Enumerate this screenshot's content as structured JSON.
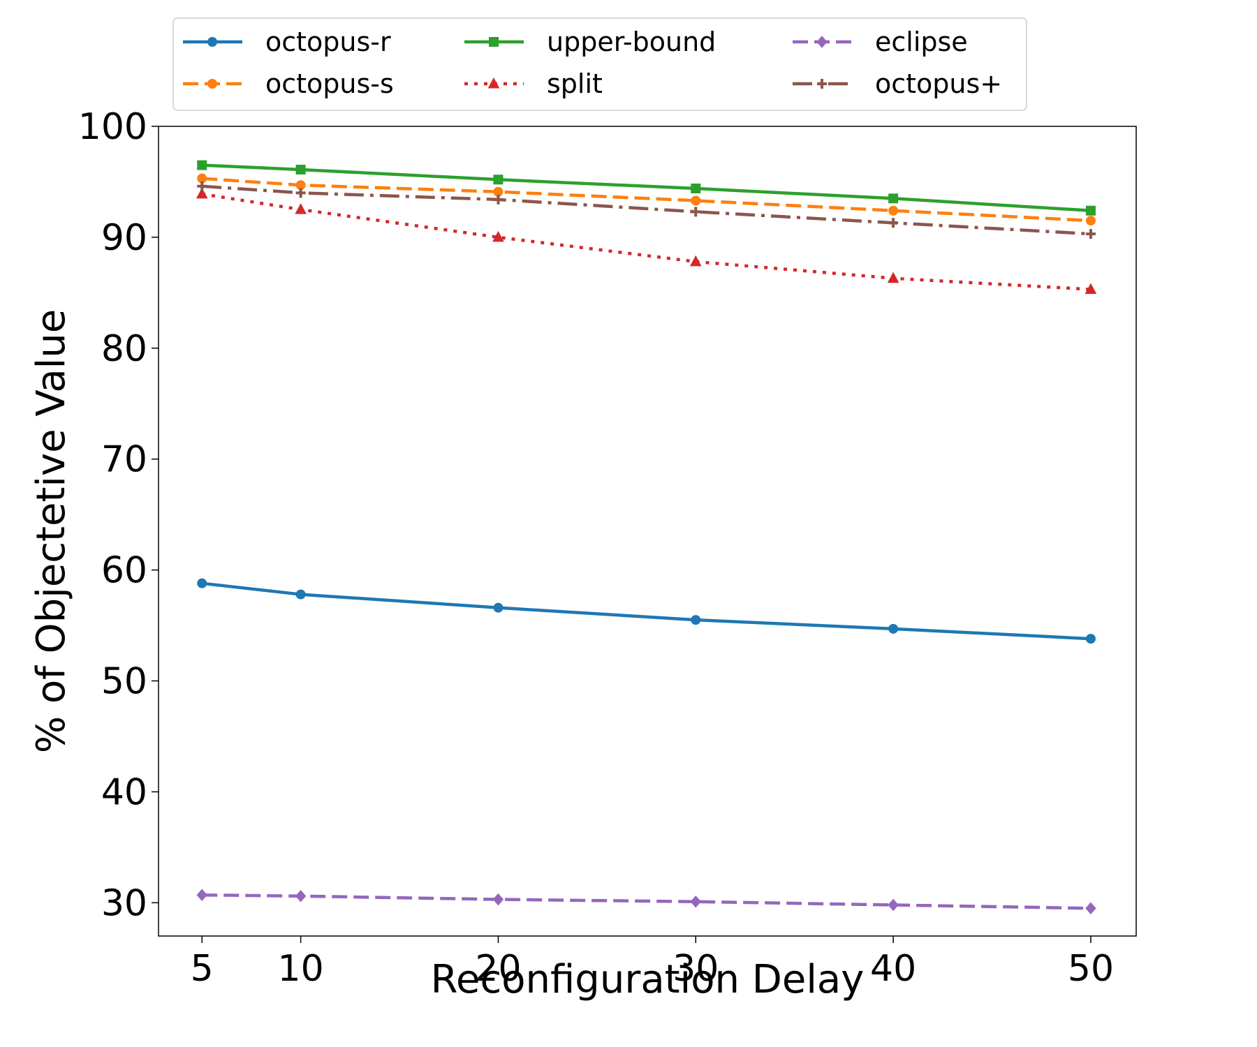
{
  "chart_data": {
    "type": "line",
    "title": "",
    "xlabel": "Reconfiguration Delay",
    "ylabel": "% of Objectetive Value",
    "x": [
      5,
      10,
      20,
      30,
      40,
      50
    ],
    "xlim": [
      2.8,
      52.3
    ],
    "ylim": [
      27,
      100
    ],
    "xticks": [
      5,
      10,
      20,
      30,
      40,
      50
    ],
    "yticks": [
      30,
      40,
      50,
      60,
      70,
      80,
      90,
      100
    ],
    "grid": false,
    "legend_position": "top, above plot, 3 columns",
    "series": [
      {
        "name": "octopus-r",
        "color": "#1f77b4",
        "dash": "solid",
        "marker": "circle",
        "values": [
          58.8,
          57.8,
          56.6,
          55.5,
          54.7,
          53.8
        ]
      },
      {
        "name": "octopus-s",
        "color": "#ff7f0e",
        "dash": "dashed",
        "marker": "circle",
        "values": [
          95.3,
          94.7,
          94.1,
          93.3,
          92.4,
          91.5
        ]
      },
      {
        "name": "upper-bound",
        "color": "#2ca02c",
        "dash": "solid",
        "marker": "square",
        "values": [
          96.5,
          96.1,
          95.2,
          94.4,
          93.5,
          92.4
        ]
      },
      {
        "name": "split",
        "color": "#d62728",
        "dash": "dotted",
        "marker": "triangle",
        "values": [
          93.9,
          92.5,
          90.0,
          87.8,
          86.3,
          85.3
        ]
      },
      {
        "name": "eclipse",
        "color": "#9467bd",
        "dash": "dashed",
        "marker": "diamond",
        "values": [
          30.7,
          30.6,
          30.3,
          30.1,
          29.8,
          29.5
        ]
      },
      {
        "name": "octopus+",
        "color": "#8c564b",
        "dash": "dashdot",
        "marker": "plus",
        "values": [
          94.6,
          94.0,
          93.4,
          92.3,
          91.3,
          90.3
        ]
      }
    ]
  }
}
